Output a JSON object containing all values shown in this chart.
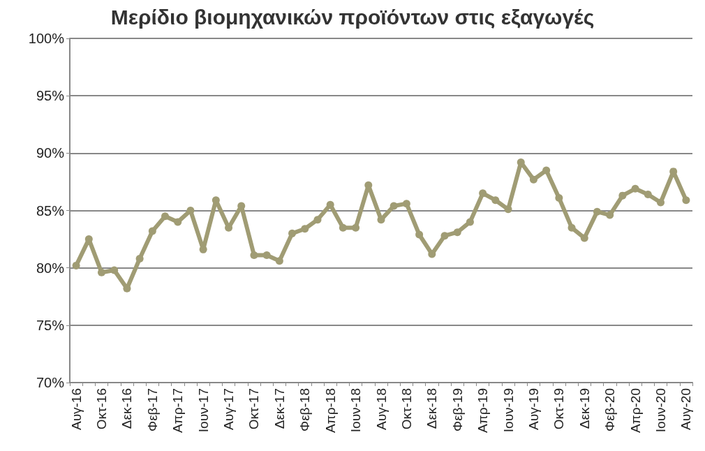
{
  "chart_data": {
    "type": "line",
    "title": "Μερίδιο βιομηχανικών προϊόντων στις εξαγωγές",
    "categories": [
      "Αυγ-16",
      null,
      "Οκτ-16",
      null,
      "Δεκ-16",
      null,
      "Φεβ-17",
      null,
      "Απρ-17",
      null,
      "Ιουν-17",
      null,
      "Αυγ-17",
      null,
      "Οκτ-17",
      null,
      "Δεκ-17",
      null,
      "Φεβ-18",
      null,
      "Απρ-18",
      null,
      "Ιουν-18",
      null,
      "Αυγ-18",
      null,
      "Οκτ-18",
      null,
      "Δεκ-18",
      null,
      "Φεβ-19",
      null,
      "Απρ-19",
      null,
      "Ιουν-19",
      null,
      "Αυγ-19",
      null,
      "Οκτ-19",
      null,
      "Δεκ-19",
      null,
      "Φεβ-20",
      null,
      "Απρ-20",
      null,
      "Ιουν-20",
      null,
      "Αυγ-20"
    ],
    "series": [
      {
        "color": "#a09c74",
        "values": [
          80.2,
          82.5,
          79.6,
          79.8,
          78.2,
          80.8,
          83.2,
          84.5,
          84.0,
          85.0,
          81.6,
          85.9,
          83.5,
          85.4,
          81.1,
          81.1,
          80.6,
          83.0,
          83.4,
          84.2,
          85.5,
          83.5,
          83.5,
          87.2,
          84.2,
          85.4,
          85.6,
          82.9,
          81.2,
          82.8,
          83.1,
          84.0,
          86.5,
          85.9,
          85.1,
          89.2,
          87.7,
          88.5,
          86.1,
          83.5,
          82.6,
          84.9,
          84.6,
          86.3,
          86.9,
          86.4,
          85.7,
          88.4,
          85.9
        ]
      }
    ],
    "ylim": [
      70,
      100
    ],
    "yticks": [
      {
        "value": 70,
        "label": "70%"
      },
      {
        "value": 75,
        "label": "75%"
      },
      {
        "value": 80,
        "label": "80%"
      },
      {
        "value": 85,
        "label": "85%"
      },
      {
        "value": 90,
        "label": "90%"
      },
      {
        "value": 95,
        "label": "95%"
      },
      {
        "value": 100,
        "label": "100%"
      }
    ],
    "grid": "y",
    "marker": "circle",
    "line_style": "solid"
  }
}
